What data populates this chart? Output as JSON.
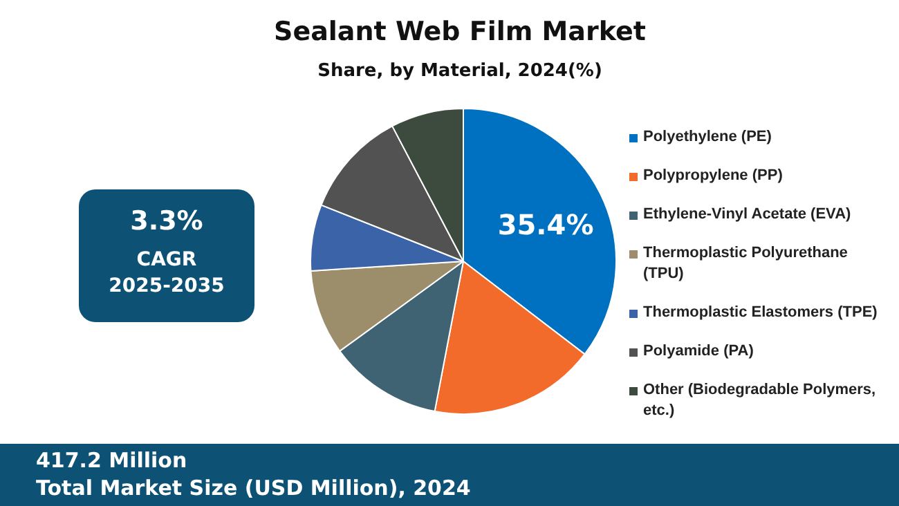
{
  "chart_data": {
    "type": "pie",
    "title": "Sealant Web Film Market",
    "subtitle": "Share, by Material, 2024(%)",
    "categories": [
      "Polyethylene (PE)",
      "Polypropylene (PP)",
      "Ethylene-Vinyl Acetate (EVA)",
      "Thermoplastic Polyurethane (TPU)",
      "Thermoplastic Elastomers (TPE)",
      "Polyamide (PA)",
      "Other (Biodegradable Polymers, etc.)"
    ],
    "values": [
      35.4,
      17.6,
      12,
      9,
      7,
      11.3,
      7.7
    ],
    "value_labels": [
      "35.4%",
      null,
      null,
      null,
      null,
      null,
      null
    ],
    "colors": [
      "#0070c0",
      "#f26b2a",
      "#3f6373",
      "#9c8d6b",
      "#3a63a8",
      "#525252",
      "#3d4a3e"
    ],
    "legend": "right",
    "annotations": [
      "3.3%",
      "CAGR",
      "2025-2035",
      "417.2 Million",
      "Total Market Size (USD Million), 2024"
    ]
  }
}
